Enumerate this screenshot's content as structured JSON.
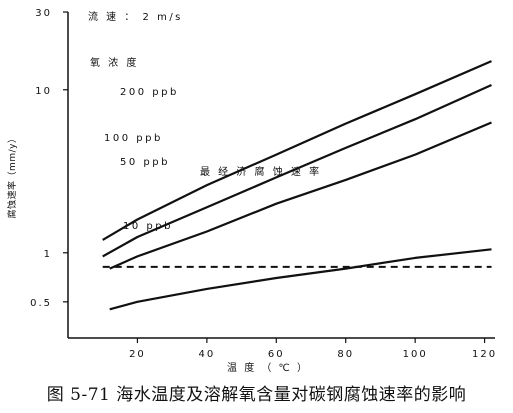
{
  "caption": "图 5-71  海水温度及溶解氧含量对碳钢腐蚀速率的影响",
  "chart_data": {
    "type": "line",
    "x_scale": "linear",
    "y_scale": "log",
    "xlim": [
      0,
      123
    ],
    "ylim": [
      0.3,
      30
    ],
    "xlabel": "温 度 （ ℃ ）",
    "ylabel": "腐蚀速率（mm/y）",
    "x_ticks": [
      20,
      40,
      60,
      80,
      100,
      120
    ],
    "x_tick_labels": [
      "20",
      "40",
      "60",
      "80",
      "100",
      "120"
    ],
    "y_ticks": [
      0.5,
      1,
      10,
      30
    ],
    "y_tick_labels": [
      "0.5",
      "1",
      "10",
      "30"
    ],
    "grid": false,
    "annotations": {
      "flow": "流 速 ： 2 m/s",
      "legend_title": "氧 浓 度",
      "dashed_label": "最 经 济 腐 蚀 速 率"
    },
    "series": [
      {
        "name": "200 ppb",
        "x": [
          10,
          20,
          40,
          60,
          80,
          100,
          122
        ],
        "y": [
          1.2,
          1.6,
          2.6,
          4.0,
          6.2,
          9.4,
          15.0
        ]
      },
      {
        "name": "100 ppb",
        "x": [
          10,
          20,
          40,
          60,
          80,
          100,
          122
        ],
        "y": [
          0.95,
          1.25,
          1.9,
          2.9,
          4.4,
          6.6,
          10.7
        ]
      },
      {
        "name": "50 ppb",
        "x": [
          12,
          20,
          40,
          60,
          80,
          100,
          122
        ],
        "y": [
          0.8,
          0.95,
          1.35,
          2.0,
          2.8,
          4.0,
          6.3
        ]
      },
      {
        "name": "10 ppb",
        "x": [
          12,
          20,
          40,
          60,
          80,
          100,
          122
        ],
        "y": [
          0.45,
          0.5,
          0.6,
          0.7,
          0.8,
          0.93,
          1.05
        ]
      }
    ],
    "reference_line": {
      "y": 0.82,
      "style": "dashed",
      "x_range": [
        10,
        122
      ]
    }
  }
}
